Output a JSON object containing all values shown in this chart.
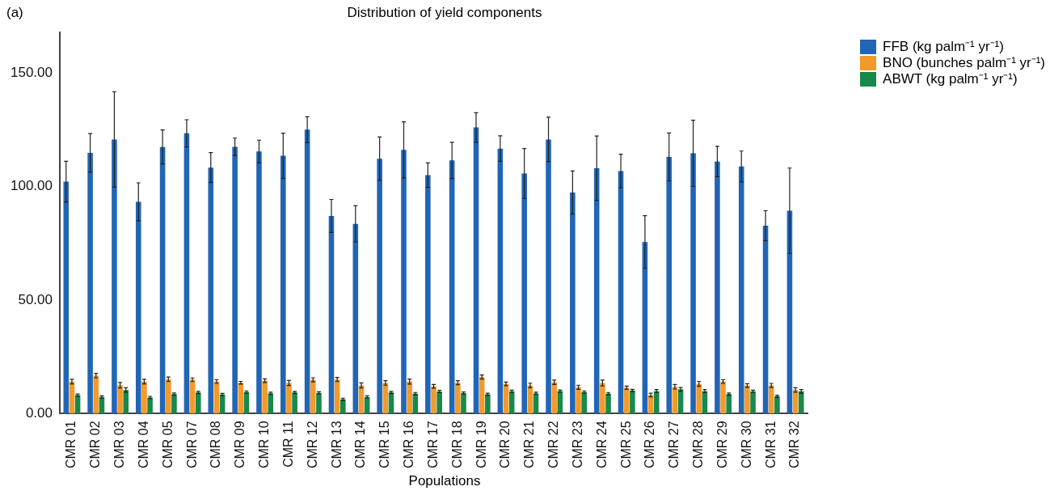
{
  "chart_data": {
    "type": "bar",
    "title": "Distribution of yield components",
    "xlabel": "Populations",
    "annotations": [
      "(a)"
    ],
    "categories": [
      "CMR 01",
      "CMR 02",
      "CMR 03",
      "CMR 04",
      "CMR 05",
      "CMR 07",
      "CMR 08",
      "CMR 09",
      "CMR 10",
      "CMR 11",
      "CMR 12",
      "CMR 13",
      "CMR 14",
      "CMR 15",
      "CMR 16",
      "CMR 17",
      "CMR 18",
      "CMR 19",
      "CMR 20",
      "CMR 21",
      "CMR 22",
      "CMR 23",
      "CMR 24",
      "CMR 25",
      "CMR 26",
      "CMR 27",
      "CMR 28",
      "CMR 29",
      "CMR 30",
      "CMR 31",
      "CMR 32"
    ],
    "series": [
      {
        "name": "FFB (kg palm⁻¹ yr⁻¹)",
        "color": "#2166b5",
        "values": [
          102.2,
          114.9,
          120.8,
          93.3,
          117.5,
          123.5,
          108.4,
          117.6,
          115.5,
          113.6,
          125.1,
          87.1,
          83.6,
          112.3,
          116.2,
          105.1,
          111.6,
          126.1,
          116.8,
          105.8,
          120.8,
          97.4,
          108.1,
          106.9,
          75.6,
          113.1,
          114.7,
          111.1,
          108.9,
          82.8,
          89.4
        ],
        "errors": [
          9,
          8.5,
          21,
          8.4,
          7.5,
          6,
          6.6,
          3.8,
          5,
          10,
          5.7,
          7.3,
          8,
          9.6,
          12.4,
          5.4,
          8,
          6.5,
          5.6,
          11,
          9.8,
          9.5,
          14.2,
          7.4,
          11.6,
          10.6,
          14.6,
          6.7,
          6.8,
          6.6,
          18.8
        ]
      },
      {
        "name": "BNO (bunches palm⁻¹ yr⁻¹)",
        "color": "#f39a2b",
        "values": [
          14.1,
          16.7,
          12.5,
          14.1,
          15.1,
          14.9,
          14.1,
          13.6,
          14.5,
          13.5,
          14.9,
          15,
          12.4,
          13.5,
          14.1,
          12,
          13.6,
          16.1,
          13.1,
          12.4,
          13.8,
          11.6,
          13.5,
          11.4,
          8.2,
          11.8,
          13.1,
          14.1,
          12.4,
          12.4,
          10.4
        ],
        "errors": [
          1,
          1,
          1.2,
          1,
          1,
          0.8,
          0.8,
          0.6,
          0.8,
          1.1,
          0.9,
          0.9,
          1.1,
          1,
          1.1,
          0.8,
          0.9,
          0.9,
          0.8,
          1,
          1,
          0.9,
          1.3,
          0.7,
          0.8,
          1,
          1.1,
          0.8,
          0.8,
          0.9,
          1
        ]
      },
      {
        "name": "ABWT (kg palm⁻¹ yr⁻¹)",
        "color": "#17894a",
        "values": [
          8.1,
          7.3,
          10.4,
          7.1,
          8.6,
          9.3,
          8.4,
          9.5,
          8.9,
          9.3,
          9.1,
          6.3,
          7.3,
          9.3,
          8.8,
          9.7,
          9,
          8.5,
          9.8,
          8.9,
          9.9,
          9.5,
          8.8,
          10.2,
          9.9,
          10.7,
          9.9,
          8.6,
          9.8,
          7.6,
          9.8
        ],
        "errors": [
          0.5,
          0.5,
          1,
          0.5,
          0.5,
          0.5,
          0.5,
          0.5,
          0.5,
          0.5,
          0.5,
          0.5,
          0.5,
          0.5,
          0.5,
          0.5,
          0.5,
          0.5,
          0.5,
          0.5,
          0.5,
          0.5,
          0.5,
          0.5,
          0.7,
          0.8,
          0.7,
          0.5,
          0.5,
          0.5,
          0.8
        ]
      }
    ],
    "ylim": [
      0,
      168
    ],
    "yticks": [
      {
        "value": 0,
        "label": "0.00"
      },
      {
        "value": 50,
        "label": "50.00"
      },
      {
        "value": 100,
        "label": "100.00"
      },
      {
        "value": 150,
        "label": "150.00"
      }
    ],
    "grid": false,
    "legend": "top right"
  }
}
